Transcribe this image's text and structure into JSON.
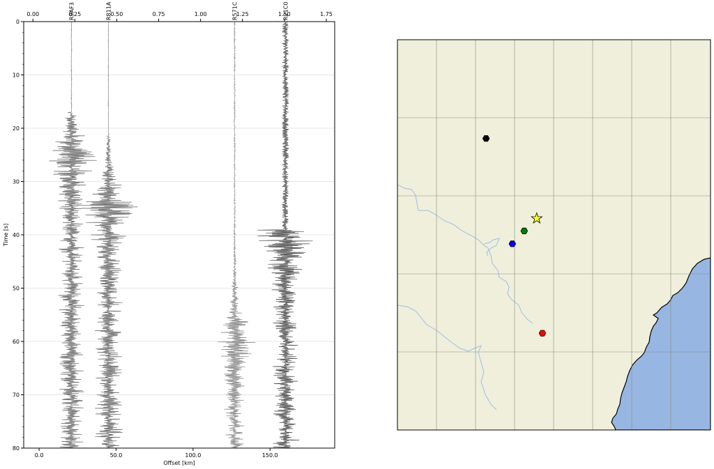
{
  "chart_data": [
    {
      "type": "line",
      "subtype": "seismic-record-section",
      "xlabel": "Offset [km]",
      "ylabel": "Time [s]",
      "xlim": [
        -10,
        192
      ],
      "ylim": [
        0,
        80
      ],
      "y_inverted": true,
      "x_ticks": [
        0.0,
        50.0,
        100.0,
        150.0
      ],
      "x_tick_labels": [
        "0.0",
        "50.0",
        "100.0",
        "150.0"
      ],
      "y_ticks": [
        0,
        10,
        20,
        30,
        40,
        50,
        60,
        70,
        80
      ],
      "y_tick_labels": [
        "0",
        "10",
        "20",
        "30",
        "40",
        "50",
        "60",
        "70",
        "80"
      ],
      "top_axis_ticks": [
        0.0,
        0.25,
        0.5,
        0.75,
        1.0,
        1.25,
        1.5,
        1.75
      ],
      "top_axis_tick_labels": [
        "0.00",
        "0.25",
        "0.50",
        "0.75",
        "1.00",
        "1.25",
        "1.50",
        "1.75"
      ],
      "grid": "horizontal",
      "traces": [
        {
          "label": "R9AF3",
          "label_color": "#2ca02c",
          "offset_km": 21,
          "onset_s": 17,
          "peak_s": 25,
          "peak_amp_km": 22,
          "noise_km": 0.4,
          "color": "#555555"
        },
        {
          "label": "R811A",
          "label_color": "#1f1fd0",
          "offset_km": 45,
          "onset_s": 21,
          "peak_s": 34.5,
          "peak_amp_km": 24,
          "noise_km": 0.3,
          "color": "#555555"
        },
        {
          "label": "R571C",
          "label_color": "#000000",
          "offset_km": 127,
          "onset_s": 35.5,
          "peak_s": 59,
          "peak_amp_km": 17,
          "noise_km": 0.6,
          "color": "#777777"
        },
        {
          "label": "R21C0",
          "label_color": "#e00000",
          "offset_km": 160,
          "onset_s": 39,
          "peak_s": 40,
          "peak_amp_km": 22,
          "noise_km": 2.2,
          "color": "#333333"
        }
      ]
    },
    {
      "type": "map",
      "land_color": "#efefdc",
      "water_color": "#98b6e2",
      "river_color": "#9fbfe0",
      "grid": true,
      "markers": [
        {
          "name": "epicenter",
          "shape": "star",
          "color": "#ffff2a",
          "map_x": 0.445,
          "map_y": 0.458
        },
        {
          "name": "R571C",
          "shape": "hexagon",
          "color": "#000000",
          "map_x": 0.283,
          "map_y": 0.253
        },
        {
          "name": "R9AF3",
          "shape": "hexagon",
          "color": "#008000",
          "map_x": 0.405,
          "map_y": 0.49
        },
        {
          "name": "R811A",
          "shape": "hexagon",
          "color": "#0000ff",
          "map_x": 0.367,
          "map_y": 0.523
        },
        {
          "name": "R21C0",
          "shape": "hexagon",
          "color": "#ff0000",
          "map_x": 0.463,
          "map_y": 0.752
        }
      ]
    }
  ]
}
